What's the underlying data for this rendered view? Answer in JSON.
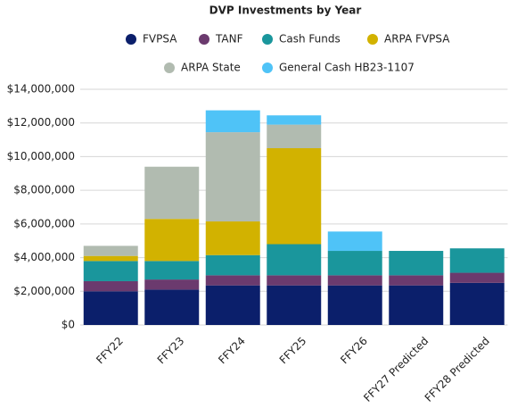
{
  "chart_data": {
    "type": "stacked-bar",
    "title": "DVP Investments by Year",
    "categories": [
      "FFY22",
      "FFY23",
      "FFY24",
      "FFY25",
      "FFY26",
      "FFY27 Predicted",
      "FFY28 Predicted"
    ],
    "series": [
      {
        "name": "FVPSA",
        "color": "#0b1f6b",
        "values": [
          2.0,
          2.1,
          2.35,
          2.35,
          2.35,
          2.35,
          2.5
        ]
      },
      {
        "name": "TANF",
        "color": "#6b3a6e",
        "values": [
          0.6,
          0.6,
          0.6,
          0.6,
          0.6,
          0.6,
          0.6
        ]
      },
      {
        "name": "Cash Funds",
        "color": "#1a969c",
        "values": [
          1.2,
          1.1,
          1.2,
          1.85,
          1.45,
          1.45,
          1.45
        ]
      },
      {
        "name": "ARPA FVPSA",
        "color": "#d2b200",
        "values": [
          0.3,
          2.5,
          2.0,
          5.7,
          0,
          0,
          0
        ]
      },
      {
        "name": "ARPA State",
        "color": "#b1bbb0",
        "values": [
          0.6,
          3.1,
          5.3,
          1.4,
          0,
          0,
          0
        ]
      },
      {
        "name": "General Cash HB23-1107",
        "color": "#4fc3f7",
        "values": [
          0,
          0,
          1.3,
          0.55,
          1.15,
          0,
          0
        ]
      }
    ],
    "ylim": [
      0,
      14
    ],
    "yticks": [
      {
        "value": 0,
        "label": "$0"
      },
      {
        "value": 2,
        "label": "$2,000,000"
      },
      {
        "value": 4,
        "label": "$4,000,000"
      },
      {
        "value": 6,
        "label": "$6,000,000"
      },
      {
        "value": 8,
        "label": "$8,000,000"
      },
      {
        "value": 10,
        "label": "$10,000,000"
      },
      {
        "value": 12,
        "label": "$12,000,000"
      },
      {
        "value": 14,
        "label": "$14,000,000"
      }
    ],
    "grid": true,
    "legend": "top"
  }
}
